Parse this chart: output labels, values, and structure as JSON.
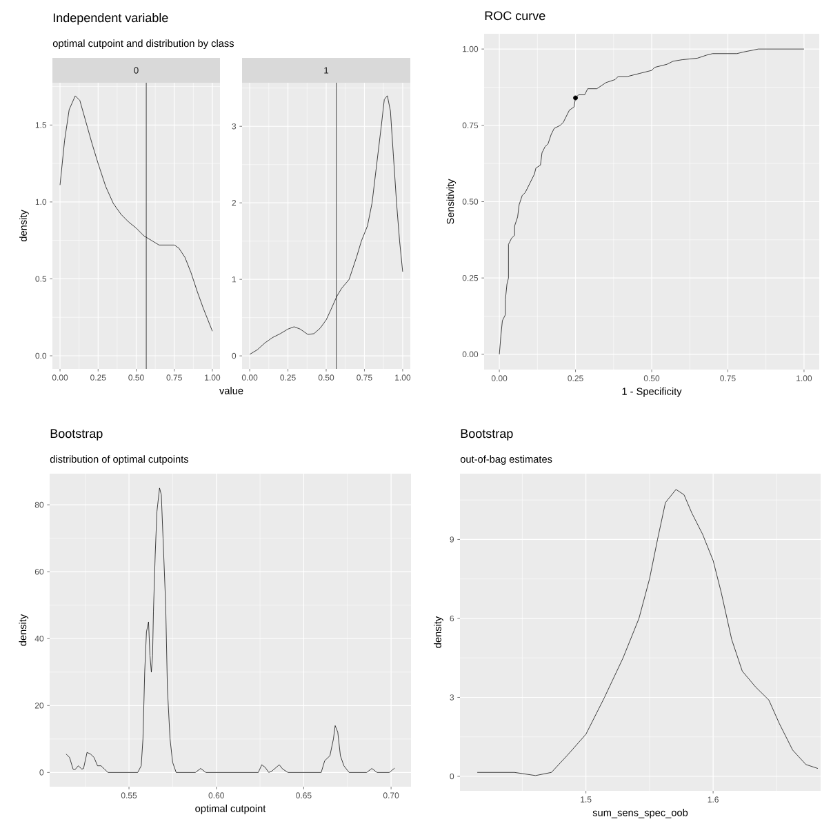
{
  "chart_data": [
    {
      "type": "line",
      "title": "Independent variable",
      "subtitle": "optimal cutpoint and distribution by class",
      "xlabel": "value",
      "ylabel": "density",
      "annotations": [
        "0"
      ],
      "color": "#000000",
      "grid": true,
      "x": [
        0,
        0.03,
        0.06,
        0.1,
        0.13,
        0.17,
        0.21,
        0.25,
        0.3,
        0.35,
        0.4,
        0.45,
        0.5,
        0.55,
        0.6,
        0.65,
        0.7,
        0.75,
        0.78,
        0.82,
        0.86,
        0.9,
        0.94,
        1.0
      ],
      "values": [
        1.11,
        1.4,
        1.6,
        1.69,
        1.66,
        1.52,
        1.38,
        1.25,
        1.1,
        0.99,
        0.92,
        0.87,
        0.83,
        0.78,
        0.75,
        0.72,
        0.72,
        0.72,
        0.7,
        0.64,
        0.54,
        0.42,
        0.31,
        0.16
      ],
      "xlim": [
        -0.05,
        1.05
      ],
      "ylim": [
        -0.085,
        1.775
      ],
      "xticks": [
        {
          "value": 0,
          "label": "0.00"
        },
        {
          "value": 0.25,
          "label": "0.25"
        },
        {
          "value": 0.5,
          "label": "0.50"
        },
        {
          "value": 0.75,
          "label": "0.75"
        },
        {
          "value": 1,
          "label": "1.00"
        }
      ],
      "yticks": [
        {
          "value": 0,
          "label": "0.0"
        },
        {
          "value": 0.5,
          "label": "0.5"
        },
        {
          "value": 1,
          "label": "1.0"
        },
        {
          "value": 1.5,
          "label": "1.5"
        }
      ],
      "ref_lines": [
        {
          "axis": "x",
          "value": 0.566,
          "color": "#000000"
        }
      ]
    },
    {
      "type": "line",
      "annotations": [
        "1"
      ],
      "color": "#000000",
      "grid": true,
      "x": [
        0,
        0.05,
        0.1,
        0.15,
        0.2,
        0.25,
        0.29,
        0.33,
        0.38,
        0.42,
        0.46,
        0.5,
        0.53,
        0.57,
        0.6,
        0.65,
        0.7,
        0.73,
        0.77,
        0.8,
        0.83,
        0.86,
        0.88,
        0.9,
        0.92,
        0.94,
        0.96,
        0.98,
        1.0
      ],
      "values": [
        0.02,
        0.08,
        0.17,
        0.24,
        0.29,
        0.35,
        0.38,
        0.35,
        0.28,
        0.29,
        0.36,
        0.47,
        0.6,
        0.78,
        0.88,
        1.0,
        1.3,
        1.5,
        1.7,
        2.0,
        2.5,
        3.0,
        3.35,
        3.4,
        3.2,
        2.6,
        2.0,
        1.5,
        1.1
      ],
      "xlim": [
        -0.05,
        1.05
      ],
      "ylim": [
        -0.17,
        3.57
      ],
      "xticks": [
        {
          "value": 0,
          "label": "0.00"
        },
        {
          "value": 0.25,
          "label": "0.25"
        },
        {
          "value": 0.5,
          "label": "0.50"
        },
        {
          "value": 0.75,
          "label": "0.75"
        },
        {
          "value": 1,
          "label": "1.00"
        }
      ],
      "yticks": [
        0,
        1,
        2,
        3
      ],
      "ref_lines": [
        {
          "axis": "x",
          "value": 0.566,
          "color": "#000000"
        }
      ]
    },
    {
      "type": "line",
      "title": "ROC curve",
      "xlabel": "1 - Specificity",
      "ylabel": "Sensitivity",
      "grid": true,
      "series": [
        {
          "type": "line",
          "color": "#000000",
          "x": [
            0,
            0.005,
            0.01,
            0.02,
            0.02,
            0.025,
            0.03,
            0.03,
            0.04,
            0.05,
            0.05,
            0.06,
            0.065,
            0.075,
            0.085,
            0.1,
            0.115,
            0.12,
            0.135,
            0.14,
            0.15,
            0.16,
            0.17,
            0.18,
            0.2,
            0.21,
            0.22,
            0.23,
            0.245,
            0.25,
            0.26,
            0.28,
            0.29,
            0.32,
            0.35,
            0.38,
            0.39,
            0.42,
            0.46,
            0.5,
            0.51,
            0.55,
            0.57,
            0.6,
            0.65,
            0.68,
            0.7,
            0.78,
            0.8,
            0.85,
            1
          ],
          "values": [
            0,
            0.06,
            0.11,
            0.13,
            0.18,
            0.23,
            0.25,
            0.36,
            0.38,
            0.39,
            0.42,
            0.45,
            0.49,
            0.52,
            0.53,
            0.56,
            0.59,
            0.61,
            0.62,
            0.66,
            0.68,
            0.69,
            0.72,
            0.74,
            0.75,
            0.76,
            0.78,
            0.8,
            0.81,
            0.84,
            0.85,
            0.85,
            0.87,
            0.87,
            0.89,
            0.9,
            0.91,
            0.91,
            0.92,
            0.93,
            0.94,
            0.95,
            0.96,
            0.965,
            0.97,
            0.98,
            0.985,
            0.985,
            0.99,
            1.0,
            1.0
          ]
        },
        {
          "type": "scatter",
          "color": "#000000",
          "marker": "circle",
          "x": [
            0.25
          ],
          "values": [
            0.84
          ]
        }
      ],
      "xlim": [
        -0.05,
        1.05
      ],
      "ylim": [
        -0.05,
        1.05
      ],
      "xticks": [
        {
          "value": 0,
          "label": "0.00"
        },
        {
          "value": 0.25,
          "label": "0.25"
        },
        {
          "value": 0.5,
          "label": "0.50"
        },
        {
          "value": 0.75,
          "label": "0.75"
        },
        {
          "value": 1,
          "label": "1.00"
        }
      ],
      "yticks": [
        {
          "value": 0,
          "label": "0.00"
        },
        {
          "value": 0.25,
          "label": "0.25"
        },
        {
          "value": 0.5,
          "label": "0.50"
        },
        {
          "value": 0.75,
          "label": "0.75"
        },
        {
          "value": 1,
          "label": "1.00"
        }
      ]
    },
    {
      "type": "line",
      "title": "Bootstrap",
      "subtitle": "distribution of optimal cutpoints",
      "xlabel": "optimal cutpoint",
      "ylabel": "density",
      "color": "#000000",
      "grid": true,
      "x": [
        0.514,
        0.516,
        0.518,
        0.519,
        0.521,
        0.523,
        0.524,
        0.526,
        0.528,
        0.53,
        0.532,
        0.534,
        0.536,
        0.538,
        0.555,
        0.557,
        0.558,
        0.559,
        0.56,
        0.5612,
        0.562,
        0.5628,
        0.5635,
        0.564,
        0.565,
        0.566,
        0.5675,
        0.5685,
        0.5695,
        0.571,
        0.572,
        0.5735,
        0.575,
        0.577,
        0.588,
        0.591,
        0.594,
        0.624,
        0.626,
        0.628,
        0.63,
        0.632,
        0.636,
        0.638,
        0.641,
        0.66,
        0.662,
        0.665,
        0.667,
        0.668,
        0.6695,
        0.671,
        0.673,
        0.676,
        0.686,
        0.689,
        0.692,
        0.699,
        0.702
      ],
      "values": [
        5.5,
        4.5,
        1,
        0.8,
        2,
        1,
        1.2,
        6,
        5.5,
        4.5,
        2,
        2,
        1,
        0,
        0,
        2,
        10,
        30,
        42,
        45,
        35,
        30,
        35,
        48,
        65,
        78,
        85,
        83,
        70,
        50,
        25,
        10,
        3,
        0,
        0,
        1.2,
        0,
        0,
        2.3,
        1.5,
        0,
        0.5,
        2.3,
        1,
        0,
        0,
        3.5,
        5,
        10,
        14,
        12,
        5,
        2,
        0,
        0,
        1.2,
        0,
        0,
        1.3
      ],
      "xlim": [
        0.5046,
        0.7114
      ],
      "ylim": [
        -4.25,
        89.3
      ],
      "xticks": [
        0.55,
        {
          "value": 0.6,
          "label": "0.60"
        },
        0.65,
        {
          "value": 0.7,
          "label": "0.70"
        }
      ],
      "yticks": [
        0,
        20,
        40,
        60,
        80
      ]
    },
    {
      "type": "line",
      "title": "Bootstrap",
      "subtitle": "out-of-bag estimates",
      "xlabel": "sum_sens_spec_oob",
      "ylabel": "density",
      "color": "#000000",
      "grid": true,
      "x": [
        1.4146,
        1.4438,
        1.4604,
        1.4729,
        1.4854,
        1.5,
        1.5146,
        1.5292,
        1.5417,
        1.55,
        1.5563,
        1.5625,
        1.5708,
        1.5771,
        1.5833,
        1.5917,
        1.6,
        1.6063,
        1.6146,
        1.6229,
        1.6333,
        1.6438,
        1.6521,
        1.6625,
        1.6729,
        1.6823
      ],
      "values": [
        0.15,
        0.15,
        0.03,
        0.15,
        0.8,
        1.6,
        3.0,
        4.5,
        6.0,
        7.5,
        9.0,
        10.4,
        10.9,
        10.7,
        10.0,
        9.2,
        8.2,
        7.0,
        5.2,
        4.0,
        3.4,
        2.9,
        2.0,
        1.0,
        0.45,
        0.3
      ],
      "xlim": [
        1.401,
        1.6845
      ],
      "ylim": [
        -0.55,
        11.5
      ],
      "xticks": [
        1.5,
        1.6
      ],
      "yticks": [
        0,
        3,
        6,
        9
      ]
    }
  ]
}
